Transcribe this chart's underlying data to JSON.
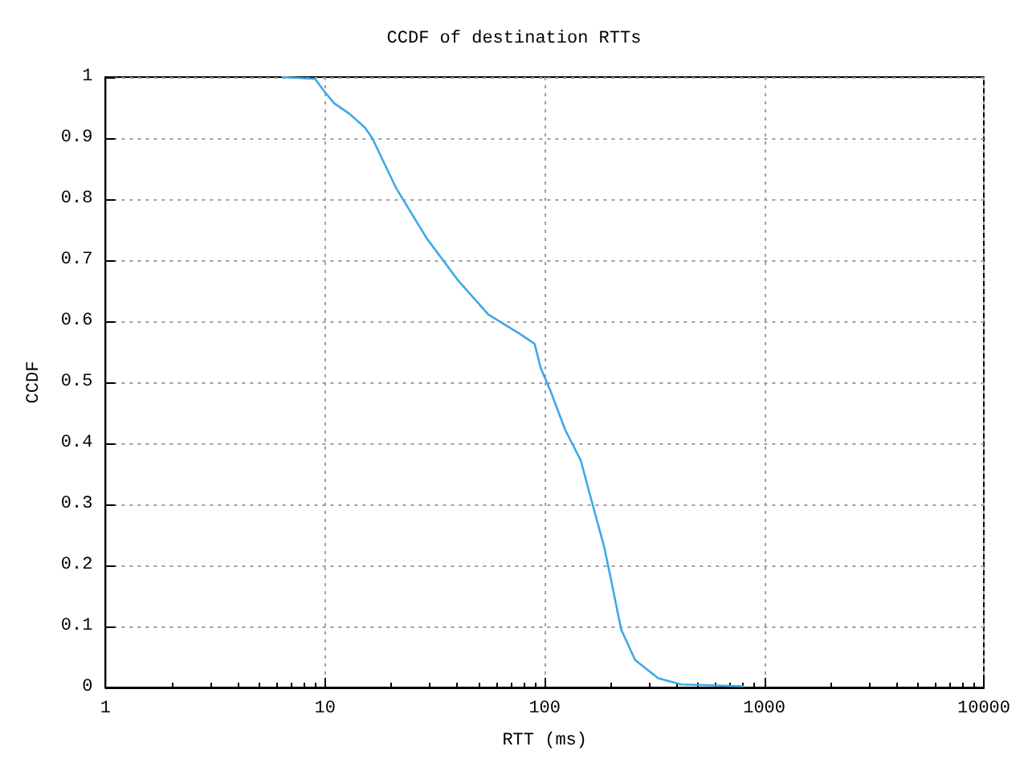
{
  "chart_data": {
    "type": "line",
    "title": "CCDF of destination RTTs",
    "xlabel": "RTT (ms)",
    "ylabel": "CCDF",
    "log": "x",
    "grid": true,
    "marker": "none",
    "line_style": "solid",
    "xlim": [
      1,
      10000
    ],
    "xticks": [
      1,
      10,
      100,
      1000,
      10000
    ],
    "ylim": [
      0,
      1
    ],
    "yticks": [
      0,
      0.1,
      0.2,
      0.3,
      0.4,
      0.5,
      0.6,
      0.7,
      0.8,
      0.9,
      1
    ],
    "series": [
      {
        "color": "#3ca9e6",
        "x": [
          6.4,
          9.0,
          10.0,
          11.0,
          12.9,
          15.2,
          16.4,
          21.0,
          29.0,
          40.1,
          55.4,
          76.5,
          90,
          96,
          106,
          124,
          146,
          159,
          187,
          202,
          223,
          258,
          329,
          419,
          800
        ],
        "values": [
          1,
          0.997,
          0.975,
          0.957,
          0.94,
          0.917,
          0.9,
          0.819,
          0.736,
          0.668,
          0.611,
          0.58,
          0.563,
          0.523,
          0.487,
          0.422,
          0.372,
          0.322,
          0.229,
          0.171,
          0.095,
          0.045,
          0.015,
          0.005,
          0.002
        ]
      }
    ]
  }
}
